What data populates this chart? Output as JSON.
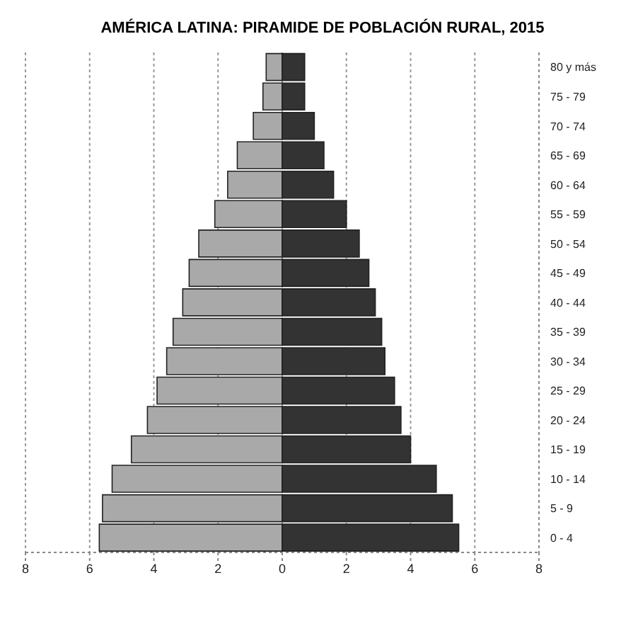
{
  "chart_data": {
    "type": "bar",
    "orientation": "horizontal",
    "stacked": true,
    "title": "AMÉRICA LATINA: PIRAMIDE DE POBLACIÓN RURAL, 2015",
    "categories": [
      "80 y más",
      "75 - 79",
      "70 - 74",
      "65 - 69",
      "60 - 64",
      "55 - 59",
      "50 - 54",
      "45 - 49",
      "40 - 44",
      "35 - 39",
      "30 - 34",
      "25 - 29",
      "20 - 24",
      "15 - 19",
      "10 - 14",
      "5 - 9",
      "0 - 4"
    ],
    "series": [
      {
        "color": "#a9a9a9",
        "values": [
          -0.5,
          -0.6,
          -0.9,
          -1.4,
          -1.7,
          -2.1,
          -2.6,
          -2.9,
          -3.1,
          -3.4,
          -3.6,
          -3.9,
          -4.2,
          -4.7,
          -5.3,
          -5.6,
          -5.7
        ]
      },
      {
        "color": "#333333",
        "values": [
          0.7,
          0.7,
          1.0,
          1.3,
          1.6,
          2.0,
          2.4,
          2.7,
          2.9,
          3.1,
          3.2,
          3.5,
          3.7,
          4.0,
          4.8,
          5.3,
          5.5
        ]
      }
    ],
    "xlim": [
      -8,
      8
    ],
    "xticks": [
      {
        "value": -8,
        "label": "8"
      },
      {
        "value": -6,
        "label": "6"
      },
      {
        "value": -4,
        "label": "4"
      },
      {
        "value": -2,
        "label": "2"
      },
      0,
      2,
      4,
      6,
      8
    ],
    "grid": "x"
  }
}
